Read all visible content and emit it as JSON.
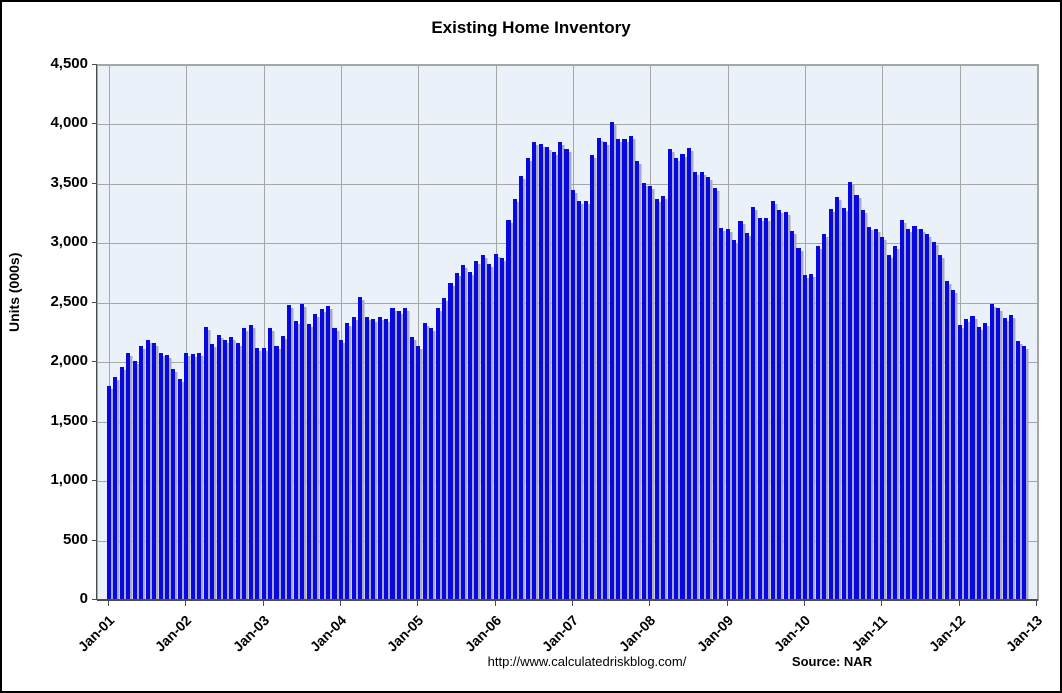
{
  "title": "Existing Home Inventory",
  "y_axis": {
    "label": "Units (000s)",
    "tick_labels": [
      "4,500",
      "4,000",
      "3,500",
      "3,000",
      "2,500",
      "2,000",
      "1,500",
      "1,000",
      "500",
      "0"
    ],
    "min": 0,
    "max": 4500,
    "step": 500
  },
  "x_axis": {
    "tick_labels": [
      "Jan-01",
      "Jan-02",
      "Jan-03",
      "Jan-04",
      "Jan-05",
      "Jan-06",
      "Jan-07",
      "Jan-08",
      "Jan-09",
      "Jan-10",
      "Jan-11",
      "Jan-12",
      "Jan-13"
    ]
  },
  "footer": {
    "url": "http://www.calculatedriskblog.com/",
    "source": "Source: NAR"
  },
  "colors": {
    "bar": "#0808e0",
    "bar_shadow": "#a9a9c6",
    "plot_bg": "#eaf1f9",
    "gridline": "#a6a6a6",
    "axis": "#4d4d4d",
    "text": "#000000"
  },
  "chart_data": {
    "type": "bar",
    "title": "Existing Home Inventory",
    "xlabel": "",
    "ylabel": "Units (000s)",
    "ylim": [
      0,
      4500
    ],
    "grid": true,
    "legend": "none",
    "x_tick_years": [
      "Jan-01",
      "Jan-02",
      "Jan-03",
      "Jan-04",
      "Jan-05",
      "Jan-06",
      "Jan-07",
      "Jan-08",
      "Jan-09",
      "Jan-10",
      "Jan-11",
      "Jan-12",
      "Jan-13"
    ],
    "categories": [
      "Jan-01",
      "Feb-01",
      "Mar-01",
      "Apr-01",
      "May-01",
      "Jun-01",
      "Jul-01",
      "Aug-01",
      "Sep-01",
      "Oct-01",
      "Nov-01",
      "Dec-01",
      "Jan-02",
      "Feb-02",
      "Mar-02",
      "Apr-02",
      "May-02",
      "Jun-02",
      "Jul-02",
      "Aug-02",
      "Sep-02",
      "Oct-02",
      "Nov-02",
      "Dec-02",
      "Jan-03",
      "Feb-03",
      "Mar-03",
      "Apr-03",
      "May-03",
      "Jun-03",
      "Jul-03",
      "Aug-03",
      "Sep-03",
      "Oct-03",
      "Nov-03",
      "Dec-03",
      "Jan-04",
      "Feb-04",
      "Mar-04",
      "Apr-04",
      "May-04",
      "Jun-04",
      "Jul-04",
      "Aug-04",
      "Sep-04",
      "Oct-04",
      "Nov-04",
      "Dec-04",
      "Jan-05",
      "Feb-05",
      "Mar-05",
      "Apr-05",
      "May-05",
      "Jun-05",
      "Jul-05",
      "Aug-05",
      "Sep-05",
      "Oct-05",
      "Nov-05",
      "Dec-05",
      "Jan-06",
      "Feb-06",
      "Mar-06",
      "Apr-06",
      "May-06",
      "Jun-06",
      "Jul-06",
      "Aug-06",
      "Sep-06",
      "Oct-06",
      "Nov-06",
      "Dec-06",
      "Jan-07",
      "Feb-07",
      "Mar-07",
      "Apr-07",
      "May-07",
      "Jun-07",
      "Jul-07",
      "Aug-07",
      "Sep-07",
      "Oct-07",
      "Nov-07",
      "Dec-07",
      "Jan-08",
      "Feb-08",
      "Mar-08",
      "Apr-08",
      "May-08",
      "Jun-08",
      "Jul-08",
      "Aug-08",
      "Sep-08",
      "Oct-08",
      "Nov-08",
      "Dec-08",
      "Jan-09",
      "Feb-09",
      "Mar-09",
      "Apr-09",
      "May-09",
      "Jun-09",
      "Jul-09",
      "Aug-09",
      "Sep-09",
      "Oct-09",
      "Nov-09",
      "Dec-09",
      "Jan-10",
      "Feb-10",
      "Mar-10",
      "Apr-10",
      "May-10",
      "Jun-10",
      "Jul-10",
      "Aug-10",
      "Sep-10",
      "Oct-10",
      "Nov-10",
      "Dec-10",
      "Jan-11",
      "Feb-11",
      "Mar-11",
      "Apr-11",
      "May-11",
      "Jun-11",
      "Jul-11",
      "Aug-11",
      "Sep-11",
      "Oct-11",
      "Nov-11",
      "Dec-11",
      "Jan-12",
      "Feb-12",
      "Mar-12",
      "Apr-12",
      "May-12",
      "Jun-12",
      "Jul-12",
      "Aug-12",
      "Sep-12",
      "Oct-12",
      "Nov-12"
    ],
    "values": [
      1800,
      1880,
      1960,
      2080,
      2010,
      2140,
      2190,
      2160,
      2080,
      2060,
      1940,
      1860,
      2080,
      2070,
      2080,
      2300,
      2150,
      2230,
      2190,
      2210,
      2160,
      2290,
      2310,
      2120,
      2120,
      2290,
      2140,
      2220,
      2480,
      2350,
      2490,
      2320,
      2410,
      2450,
      2470,
      2290,
      2190,
      2330,
      2380,
      2550,
      2380,
      2360,
      2380,
      2360,
      2460,
      2430,
      2460,
      2210,
      2140,
      2330,
      2290,
      2460,
      2540,
      2670,
      2750,
      2820,
      2760,
      2850,
      2900,
      2830,
      2910,
      2880,
      3200,
      3370,
      3570,
      3720,
      3850,
      3840,
      3810,
      3770,
      3850,
      3790,
      3450,
      3360,
      3360,
      3740,
      3890,
      3850,
      4020,
      3880,
      3880,
      3900,
      3690,
      3510,
      3480,
      3370,
      3400,
      3790,
      3720,
      3750,
      3800,
      3600,
      3600,
      3560,
      3470,
      3130,
      3120,
      3030,
      3190,
      3090,
      3310,
      3210,
      3210,
      3360,
      3280,
      3260,
      3100,
      2960,
      2730,
      2740,
      2980,
      3080,
      3290,
      3390,
      3300,
      3520,
      3410,
      3280,
      3140,
      3120,
      3050,
      2900,
      2980,
      3200,
      3120,
      3150,
      3120,
      3080,
      3010,
      2900,
      2680,
      2610,
      2310,
      2360,
      2390,
      2300,
      2330,
      2490,
      2460,
      2370,
      2400,
      2180,
      2140
    ]
  }
}
